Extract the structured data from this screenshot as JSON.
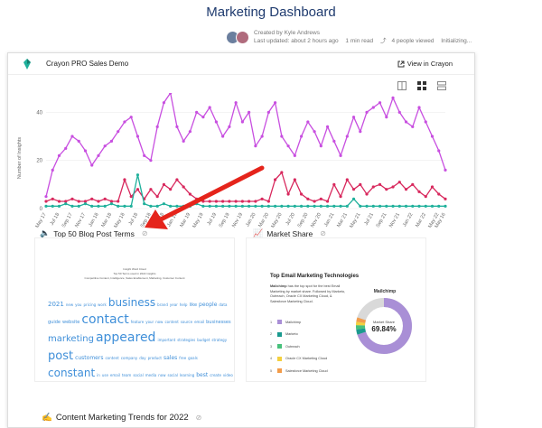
{
  "page": {
    "title": "Marketing Dashboard",
    "created_by": "Created by Kyle Andrews",
    "last_updated": "Last updated: about 2 hours ago",
    "read_time": "1 min read",
    "viewed": "4 people viewed",
    "status": "Initializing..."
  },
  "panel": {
    "title": "Crayon PRO Sales Demo",
    "view_link": "View in Crayon"
  },
  "colors": {
    "purple": "#c84fe0",
    "crimson": "#d8285d",
    "teal": "#1fb09b",
    "arrow": "#e5241b",
    "word_blue": "#3f8fd9"
  },
  "chart_data": {
    "type": "line",
    "ylabel": "Number of Insights",
    "yticks": [
      0,
      20,
      40
    ],
    "x": [
      "May 17",
      "Jun 17",
      "Jul 18",
      "Aug 17",
      "Sep 17",
      "Oct 17",
      "Nov 17",
      "Dec 17",
      "Jan 18",
      "Feb 18",
      "Mar 18",
      "Apr 18",
      "May 18",
      "Jun 18",
      "Jul 18",
      "Aug 18",
      "Sep 18",
      "Oct 18",
      "Nov 18",
      "Dec 18",
      "Jan 19",
      "Feb 19",
      "Mar 19",
      "Apr 19",
      "May 19",
      "Jun 19",
      "Jul 19",
      "Aug 19",
      "Sep 19",
      "Oct 19",
      "Nov 19",
      "Dec 19",
      "Jan 20",
      "Feb 20",
      "Mar 20",
      "Apr 20",
      "May 20",
      "Jun 20",
      "Jul 20",
      "Aug 20",
      "Sep 20",
      "Oct 20",
      "Nov 20",
      "Dec 20",
      "Jan 21",
      "Feb 21",
      "Mar 21",
      "Apr 21",
      "May 21",
      "Jun 21",
      "Jul 21",
      "Aug 21",
      "Sep 21",
      "Oct 21",
      "Nov 21",
      "Dec 21",
      "Jan 22",
      "Feb 22",
      "Mar 22",
      "Apr 22",
      "May 22",
      "May 16"
    ],
    "series": [
      {
        "color": "purple",
        "values": [
          5,
          16,
          22,
          25,
          30,
          28,
          24,
          18,
          22,
          26,
          28,
          32,
          36,
          38,
          30,
          22,
          20,
          34,
          44,
          48,
          34,
          28,
          32,
          40,
          38,
          42,
          36,
          30,
          34,
          44,
          36,
          40,
          26,
          30,
          40,
          44,
          30,
          26,
          22,
          30,
          36,
          32,
          26,
          34,
          28,
          22,
          30,
          38,
          32,
          40,
          42,
          44,
          38,
          46,
          40,
          36,
          34,
          42,
          36,
          30,
          24,
          16
        ]
      },
      {
        "color": "crimson",
        "values": [
          3,
          4,
          3,
          3,
          4,
          3,
          3,
          4,
          3,
          4,
          3,
          3,
          12,
          5,
          8,
          4,
          8,
          5,
          10,
          8,
          12,
          9,
          6,
          4,
          3,
          3,
          3,
          3,
          3,
          3,
          3,
          3,
          3,
          4,
          3,
          12,
          15,
          6,
          12,
          6,
          4,
          3,
          4,
          3,
          10,
          5,
          12,
          8,
          10,
          6,
          9,
          10,
          8,
          9,
          11,
          8,
          10,
          7,
          5,
          9,
          6,
          4
        ]
      },
      {
        "color": "teal",
        "values": [
          1,
          1,
          1,
          2,
          1,
          1,
          2,
          1,
          1,
          1,
          2,
          1,
          1,
          1,
          14,
          2,
          1,
          1,
          2,
          1,
          1,
          1,
          1,
          2,
          1,
          1,
          1,
          1,
          1,
          1,
          1,
          1,
          1,
          1,
          1,
          1,
          1,
          1,
          1,
          1,
          1,
          1,
          1,
          1,
          1,
          1,
          1,
          4,
          1,
          1,
          1,
          1,
          1,
          1,
          1,
          1,
          1,
          1,
          1,
          1,
          1,
          1
        ]
      }
    ]
  },
  "cards": {
    "blog": {
      "emoji": "🔈",
      "title": "Top 50 Blog Post Terms"
    },
    "market": {
      "emoji": "📈",
      "title": "Market Share"
    },
    "content": {
      "emoji": "✍",
      "title": "Content Marketing Trends for 2022"
    }
  },
  "wordcloud": {
    "header_lines": [
      "Insight Word Cloud",
      "Top 50 Terms used in 2022 insights",
      "Competitive Content, Intelligence, Sales Enablement, Marketing, Customer Content"
    ],
    "rows": [
      [
        {
          "t": "2021",
          "s": 7
        },
        {
          "t": "new",
          "s": 4
        },
        {
          "t": "you",
          "s": 4
        },
        {
          "t": "pricing",
          "s": 4
        },
        {
          "t": "work",
          "s": 4
        },
        {
          "t": "business",
          "s": 12
        },
        {
          "t": "brand",
          "s": 4
        },
        {
          "t": "year",
          "s": 4
        },
        {
          "t": "help",
          "s": 4
        },
        {
          "t": "like",
          "s": 5
        },
        {
          "t": "people",
          "s": 6
        },
        {
          "t": "data",
          "s": 4
        }
      ],
      [
        {
          "t": "guide",
          "s": 5
        },
        {
          "t": "website",
          "s": 5
        },
        {
          "t": "contact",
          "s": 14
        },
        {
          "t": "feature",
          "s": 4
        },
        {
          "t": "your",
          "s": 4
        },
        {
          "t": "now",
          "s": 4
        },
        {
          "t": "content",
          "s": 4
        },
        {
          "t": "source",
          "s": 4
        },
        {
          "t": "email",
          "s": 4
        },
        {
          "t": "businesses",
          "s": 5
        }
      ],
      [
        {
          "t": "marketing",
          "s": 10
        },
        {
          "t": "appeared",
          "s": 14
        },
        {
          "t": "important",
          "s": 4
        },
        {
          "t": "strategies",
          "s": 4
        },
        {
          "t": "budget",
          "s": 4
        },
        {
          "t": "strategy",
          "s": 4
        }
      ],
      [
        {
          "t": "post",
          "s": 13
        },
        {
          "t": "customers",
          "s": 6
        },
        {
          "t": "content",
          "s": 4
        },
        {
          "t": "company",
          "s": 4
        },
        {
          "t": "day",
          "s": 4
        },
        {
          "t": "product",
          "s": 4
        },
        {
          "t": "sales",
          "s": 6
        },
        {
          "t": "free",
          "s": 4
        },
        {
          "t": "goals",
          "s": 4
        }
      ],
      [
        {
          "t": "constant",
          "s": 12
        },
        {
          "t": "in",
          "s": 4
        },
        {
          "t": "use",
          "s": 4
        },
        {
          "t": "email",
          "s": 4
        },
        {
          "t": "team",
          "s": 4
        },
        {
          "t": "social",
          "s": 4
        },
        {
          "t": "media",
          "s": 4
        },
        {
          "t": "now",
          "s": 4
        },
        {
          "t": "social",
          "s": 4
        },
        {
          "t": "learning",
          "s": 4
        },
        {
          "t": "best",
          "s": 6
        },
        {
          "t": "create",
          "s": 4
        },
        {
          "t": "video",
          "s": 4
        }
      ]
    ]
  },
  "market_share": {
    "title": "Top Email Marketing Technologies",
    "desc_bold": "Mailchimp",
    "desc_rest": "has the top spot for the best Email Marketing by market share. Followed by Marketo, Outreach, Oracle CX Marketing Cloud, & Salesforce Marketing Cloud.",
    "donut_title": "Mailchimp",
    "center_label": "Market Share",
    "center_value": "69.84%",
    "items": [
      {
        "num": "1",
        "name": "Mailchimp",
        "color": "#a98fd6",
        "share": 69.84
      },
      {
        "num": "2",
        "name": "Marketo",
        "color": "#1a9a8f",
        "share": 3
      },
      {
        "num": "3",
        "name": "Outreach",
        "color": "#48c17c",
        "share": 2.5
      },
      {
        "num": "4",
        "name": "Oracle CX Marketing Cloud",
        "color": "#f4d03f",
        "share": 2
      },
      {
        "num": "5",
        "name": "Salesforce Marketing Cloud",
        "color": "#f39c4a",
        "share": 2.5
      }
    ],
    "remainder_color": "#d9d9d9"
  }
}
